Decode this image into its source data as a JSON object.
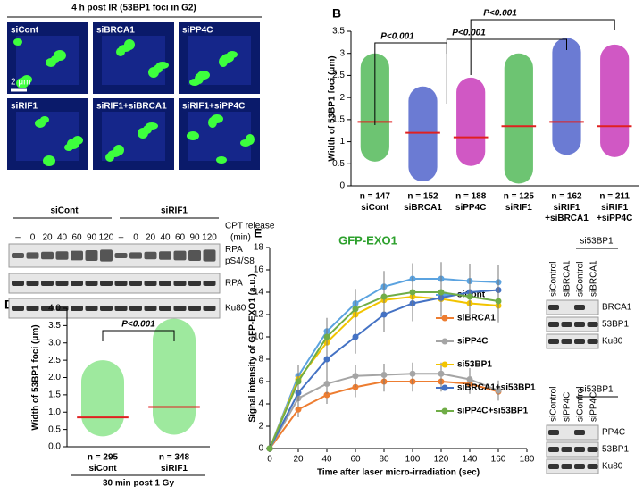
{
  "panel_labels": [
    "B",
    "D",
    "E"
  ],
  "panel_a": {
    "title": "4 h post IR (53BP1 foci in G2)",
    "images": [
      "siCont",
      "siBRCA1",
      "siPP4C",
      "siRIF1",
      "siRIF1+siBRCA1",
      "siRIF1+siPP4C"
    ],
    "scale_bar": "2 μm"
  },
  "blot_a": {
    "groups": [
      "siCont",
      "siRIF1"
    ],
    "treatment": "CPT release",
    "unit": "(min)",
    "lanes": [
      "–",
      "0",
      "20",
      "40",
      "60",
      "90",
      "120",
      "–",
      "0",
      "20",
      "40",
      "60",
      "90",
      "120"
    ],
    "rows": [
      "RPA pS4/S8",
      "RPA",
      "Ku80"
    ]
  },
  "blot_e": [
    {
      "header": "si53BP1",
      "lanes": [
        "siControl",
        "siBRCA1",
        "siControl",
        "siBRCA1"
      ],
      "rows": [
        "BRCA1",
        "53BP1",
        "Ku80"
      ]
    },
    {
      "header": "si53BP1",
      "lanes": [
        "siControl",
        "siPP4C",
        "siControl",
        "siPP4C"
      ],
      "rows": [
        "PP4C",
        "53BP1",
        "Ku80"
      ]
    }
  ],
  "chart_data": [
    {
      "type": "swarm",
      "ylabel": "Width of 53BP1 foci (μm)",
      "categories": [
        "siCont",
        "siBRCA1",
        "siPP4C",
        "siRIF1",
        "siRIF1 +siBRCA1",
        "siRIF1 +siPP4C"
      ],
      "n_labels": [
        "n = 147",
        "n = 152",
        "n = 188",
        "n = 125",
        "n = 162",
        "n = 211"
      ],
      "colors": [
        "#3cb043",
        "#3a4fc4",
        "#c020b0",
        "#3cb043",
        "#3a4fc4",
        "#c020b0"
      ],
      "median": [
        1.45,
        1.2,
        1.1,
        1.35,
        1.45,
        1.35
      ],
      "min": [
        0.55,
        0.1,
        0.45,
        0.05,
        0.7,
        0.65
      ],
      "max": [
        3.0,
        2.25,
        2.45,
        3.0,
        3.35,
        3.2
      ],
      "median_color": "#e02020",
      "ylim": [
        0,
        3.5
      ],
      "yticks": [
        0,
        0.5,
        1.0,
        1.5,
        2.0,
        2.5,
        3.0,
        3.5
      ],
      "annotations": [
        "P<0.001",
        "P<0.001",
        "P<0.001"
      ]
    },
    {
      "type": "swarm",
      "ylabel": "Width of 53BP1 foci (μm)",
      "xlabel": "30 min post 1 Gy",
      "categories": [
        "siCont",
        "siRIF1"
      ],
      "n_labels": [
        "n = 295",
        "n = 348"
      ],
      "colors": [
        "#7ee27e",
        "#7ee27e"
      ],
      "median": [
        0.85,
        1.15
      ],
      "min": [
        0.3,
        0.35
      ],
      "max": [
        2.5,
        3.7
      ],
      "median_color": "#e02020",
      "ylim": [
        0,
        4
      ],
      "yticks": [
        {
          "value": 0,
          "label": "0.0"
        },
        {
          "value": 0.5,
          "label": "0.5"
        },
        {
          "value": 1,
          "label": "1.0"
        },
        {
          "value": 1.5,
          "label": "1.5"
        },
        {
          "value": 2,
          "label": "2.0"
        },
        {
          "value": 2.5,
          "label": "2.5"
        },
        {
          "value": 3,
          "label": "3.0"
        },
        {
          "value": 3.5,
          "label": "3.5"
        },
        {
          "value": 4,
          "label": "4.0"
        }
      ],
      "annotations": [
        "P<0.001"
      ]
    },
    {
      "type": "line",
      "title": "GFP-EXO1",
      "xlabel": "Time after laser micro-irradiation (sec)",
      "ylabel": "Signal intensity of GFP-EXO1 (a.u.)",
      "x": [
        0,
        20,
        40,
        60,
        80,
        100,
        120,
        140,
        160
      ],
      "xlim": [
        0,
        180
      ],
      "xticks": [
        0,
        20,
        40,
        60,
        80,
        100,
        120,
        140,
        160,
        180
      ],
      "ylim": [
        0,
        18
      ],
      "yticks": [
        0,
        2,
        4,
        6,
        8,
        10,
        12,
        14,
        16,
        18
      ],
      "series": [
        {
          "name": "siCont",
          "color": "#5ba3e0",
          "values": [
            0,
            6.5,
            10.5,
            13,
            14.5,
            15.2,
            15.2,
            15,
            14.9
          ],
          "errors": [
            0,
            1,
            1.2,
            1.3,
            1.4,
            1.4,
            1.5,
            1.5,
            1.5
          ]
        },
        {
          "name": "siBRCA1",
          "color": "#ed7d31",
          "values": [
            0,
            3.5,
            4.8,
            5.5,
            6,
            6,
            6,
            5.8,
            5.1
          ],
          "errors": [
            0,
            0.7,
            0.8,
            0.9,
            0.9,
            0.9,
            0.9,
            0.9,
            0.8
          ]
        },
        {
          "name": "siPP4C",
          "color": "#a5a5a5",
          "values": [
            0,
            4.5,
            5.8,
            6.5,
            6.6,
            6.7,
            6.7,
            6.2,
            5.2
          ],
          "errors": [
            0,
            0.8,
            0.9,
            1,
            1,
            1,
            1,
            1,
            0.9
          ]
        },
        {
          "name": "si53BP1",
          "color": "#f2c400",
          "values": [
            0,
            6.2,
            9.5,
            12,
            13.3,
            13.6,
            13.4,
            13,
            12.8
          ],
          "errors": [
            0,
            1,
            1.2,
            1.3,
            1.4,
            1.4,
            1.5,
            1.5,
            1.5
          ]
        },
        {
          "name": "siBRCA1+si53BP1",
          "color": "#4472c4",
          "values": [
            0,
            5,
            8,
            10,
            12,
            13,
            13.5,
            14,
            14.2
          ],
          "errors": [
            0,
            1,
            1.3,
            1.5,
            1.6,
            1.6,
            1.7,
            1.7,
            1.8
          ]
        },
        {
          "name": "siPP4C+si53BP1",
          "color": "#70ad47",
          "values": [
            0,
            6,
            10,
            12.5,
            13.6,
            14,
            14,
            13.6,
            13.2
          ],
          "errors": [
            0,
            1,
            1.2,
            1.3,
            1.4,
            1.4,
            1.5,
            1.5,
            1.5
          ]
        }
      ]
    }
  ]
}
